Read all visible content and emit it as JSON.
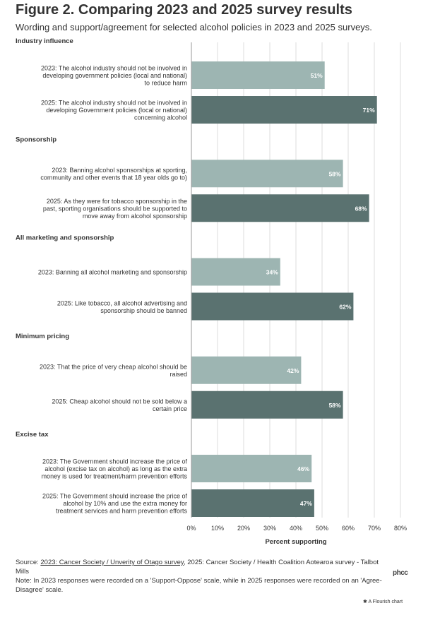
{
  "header": {
    "title": "Figure 2. Comparing 2023 and 2025 survey results",
    "subtitle": "Wording and support/agreement for selected alcohol policies in 2023 and 2025 surveys."
  },
  "footer": {
    "source_prefix": "Source: ",
    "source_link": "2023: Cancer Society / Unverity of Otago survey",
    "source_rest": ", 2025: Cancer Society / Health Coalition Aotearoa survey - Talbot Mills",
    "note": "Note: In 2023 responses were recorded on a 'Support-Oppose' scale, while in 2025 responses were recorded on an 'Agree-Disagree' scale.",
    "brand": "phcc",
    "flourish_credit": "A Flourish chart"
  },
  "colors": {
    "bar_2023": "#9db5b2",
    "bar_2025": "#5a7270",
    "grid": "#dddddd",
    "axis": "#999999",
    "text": "#333333"
  },
  "chart_data": {
    "type": "bar",
    "orientation": "horizontal",
    "xlabel": "Percent supporting",
    "xlim": [
      0,
      80
    ],
    "xticks": [
      0,
      10,
      20,
      30,
      40,
      50,
      60,
      70,
      80
    ],
    "tick_suffix": "%",
    "grid": true,
    "groups": [
      {
        "name": "Industry influence",
        "bars": [
          {
            "label": [
              "2023: The alcohol industry should not be involved in",
              "developing government policies (local and national)",
              "to reduce harm"
            ],
            "value": 51,
            "year": "2023"
          },
          {
            "label": [
              "2025: The alcohol industry should not be involved in",
              "developing Government policies (local or national)",
              "concerning alcohol"
            ],
            "value": 71,
            "year": "2025"
          }
        ]
      },
      {
        "name": "Sponsorship",
        "bars": [
          {
            "label": [
              "2023: Banning alcohol sponsorships at sporting,",
              "community and other events that 18 year olds go to)"
            ],
            "value": 58,
            "year": "2023"
          },
          {
            "label": [
              "2025: As they were for tobacco sponsorship in the",
              "past, sporting organisations should be supported to",
              "move away from alcohol sponsorship"
            ],
            "value": 68,
            "year": "2025"
          }
        ]
      },
      {
        "name": "All marketing and sponsorship",
        "bars": [
          {
            "label": [
              "2023: Banning all alcohol marketing and sponsorship"
            ],
            "value": 34,
            "year": "2023"
          },
          {
            "label": [
              "2025: Like tobacco, all alcohol advertising and",
              "sponsorship should be banned"
            ],
            "value": 62,
            "year": "2025"
          }
        ]
      },
      {
        "name": "Minimum pricing",
        "bars": [
          {
            "label": [
              "2023: That the price of very cheap alcohol should be",
              "raised"
            ],
            "value": 42,
            "year": "2023"
          },
          {
            "label": [
              "2025: Cheap alcohol should not be sold below a",
              "certain price"
            ],
            "value": 58,
            "year": "2025"
          }
        ]
      },
      {
        "name": "Excise tax",
        "bars": [
          {
            "label": [
              "2023: The Government should increase the price of",
              "alcohol (excise tax on alcohol) as long as the extra",
              "money is used for treatment/harm prevention efforts"
            ],
            "value": 46,
            "year": "2023"
          },
          {
            "label": [
              "2025: The Government should increase the price of",
              "alcohol by 10% and use the extra money for",
              "treatment services and harm prevention efforts"
            ],
            "value": 47,
            "year": "2025"
          }
        ]
      }
    ]
  }
}
